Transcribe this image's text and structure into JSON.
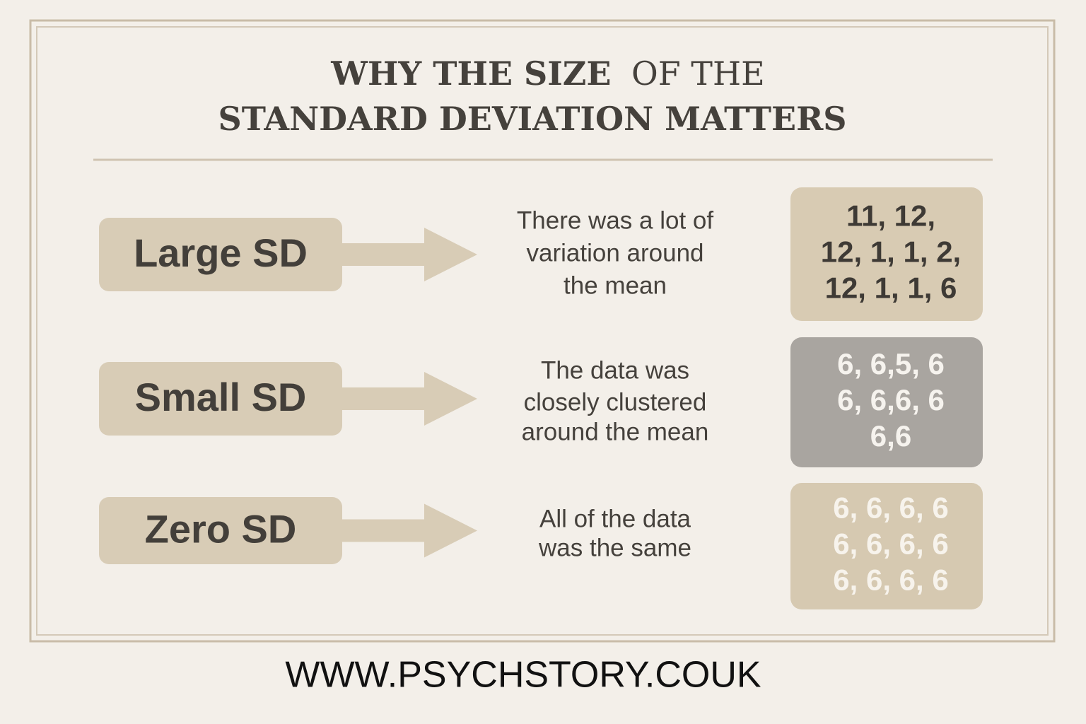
{
  "header": {
    "title_line1": [
      "WHY THE SIZE",
      "OF THE"
    ],
    "title_line2": "STANDARD DEVIATION MATTERS"
  },
  "rows": [
    {
      "label": "Large SD",
      "description": [
        "There was a lot of",
        "variation around",
        "the mean"
      ],
      "data": [
        "11, 12,",
        "12, 1, 1, 2,",
        "12, 1, 1, 6"
      ]
    },
    {
      "label": "Small SD",
      "description": [
        "The data was",
        "closely clustered",
        "around the mean"
      ],
      "data": [
        "6, 6,5, 6",
        "6, 6,6, 6",
        "6,6"
      ]
    },
    {
      "label": "Zero SD",
      "description": [
        "All of the data",
        "was the same"
      ],
      "data": [
        "6, 6, 6, 6",
        "6, 6, 6, 6",
        "6, 6, 6, 6"
      ]
    }
  ],
  "footer": {
    "url": "WWW.PSYCHSTORY.COUK"
  }
}
